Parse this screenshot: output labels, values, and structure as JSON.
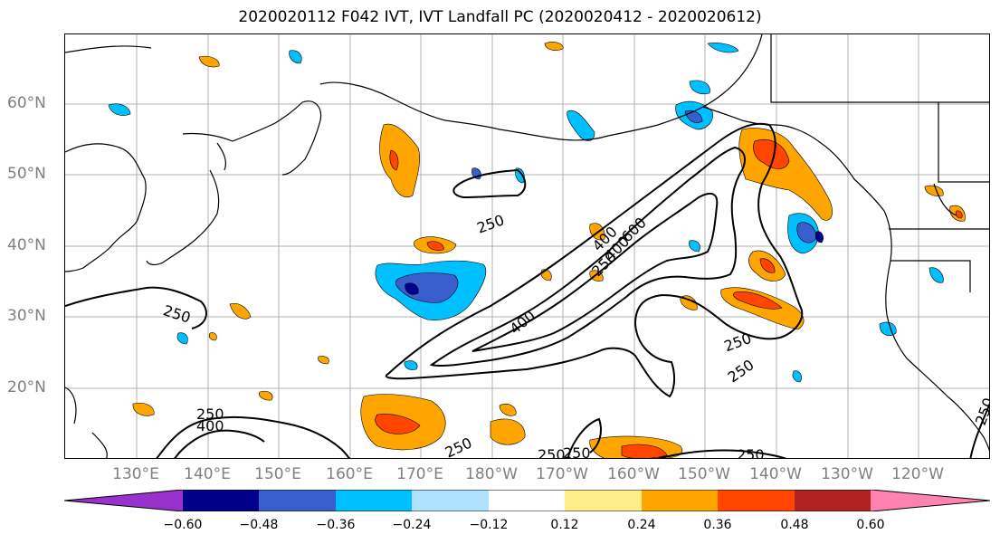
{
  "title": "2020020112 F042 IVT, IVT Landfall PC (2020020412 - 2020020612)",
  "lat_labels": [
    "60°N",
    "50°N",
    "40°N",
    "30°N",
    "20°N"
  ],
  "lon_labels": [
    "130°E",
    "140°E",
    "150°E",
    "160°E",
    "170°E",
    "180°W",
    "170°W",
    "160°W",
    "150°W",
    "140°W",
    "130°W",
    "120°W"
  ],
  "colorbar": {
    "colors": [
      "#9932cc",
      "#00008b",
      "#3a5fcd",
      "#00bfff",
      "#b0e2ff",
      "#ffffff",
      "#ffec8b",
      "#ffa500",
      "#ff4500",
      "#b22222",
      "#ff83b0"
    ],
    "ticks": [
      "−0.60",
      "−0.48",
      "−0.36",
      "−0.24",
      "−0.12",
      "0.12",
      "0.24",
      "0.36",
      "0.48",
      "0.60"
    ]
  },
  "contour_labels": [
    "250",
    "250",
    "400",
    "250",
    "400",
    "250",
    "250",
    "400",
    "600",
    "250",
    "250",
    "250",
    "250",
    "250",
    "250",
    "400"
  ]
}
